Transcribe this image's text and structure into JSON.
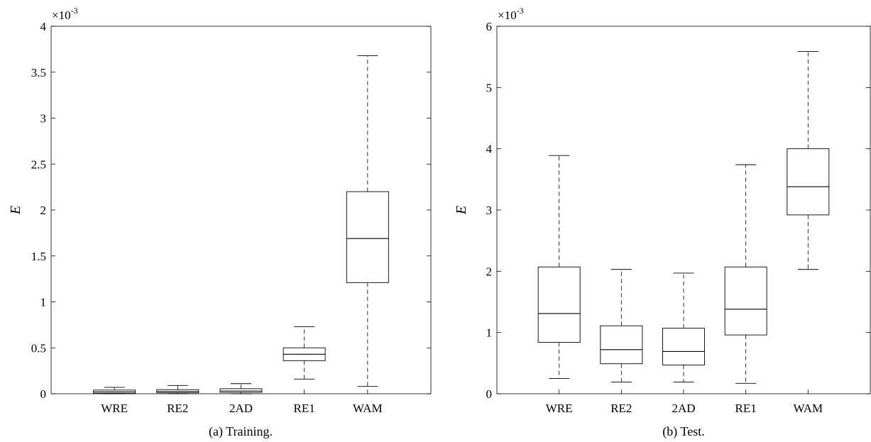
{
  "chart_data": [
    {
      "type": "box",
      "caption": "(a) Training.",
      "ylabel": "E",
      "multiplier": {
        "base": "×10",
        "exponent": "-3"
      },
      "ylim": [
        0,
        4
      ],
      "yticks": [
        0,
        0.5,
        1,
        1.5,
        2,
        2.5,
        3,
        3.5,
        4
      ],
      "ytick_labels": [
        "0",
        "0.5",
        "1",
        "1.5",
        "2",
        "2.5",
        "3",
        "3.5",
        "4"
      ],
      "categories": [
        "WRE",
        "RE2",
        "2AD",
        "RE1",
        "WAM"
      ],
      "boxes": [
        {
          "whisker_low": 0.0,
          "q1": 0.005,
          "median": 0.02,
          "q3": 0.04,
          "whisker_high": 0.07
        },
        {
          "whisker_low": 0.0,
          "q1": 0.01,
          "median": 0.025,
          "q3": 0.045,
          "whisker_high": 0.09
        },
        {
          "whisker_low": 0.0,
          "q1": 0.015,
          "median": 0.03,
          "q3": 0.055,
          "whisker_high": 0.11
        },
        {
          "whisker_low": 0.16,
          "q1": 0.36,
          "median": 0.43,
          "q3": 0.5,
          "whisker_high": 0.73
        },
        {
          "whisker_low": 0.08,
          "q1": 1.21,
          "median": 1.69,
          "q3": 2.2,
          "whisker_high": 3.68
        }
      ],
      "grid": false
    },
    {
      "type": "box",
      "caption": "(b) Test.",
      "ylabel": "E",
      "multiplier": {
        "base": "×10",
        "exponent": "-3"
      },
      "ylim": [
        0,
        6
      ],
      "yticks": [
        0,
        1,
        2,
        3,
        4,
        5,
        6
      ],
      "ytick_labels": [
        "0",
        "1",
        "2",
        "3",
        "4",
        "5",
        "6"
      ],
      "categories": [
        "WRE",
        "RE2",
        "2AD",
        "RE1",
        "WAM"
      ],
      "boxes": [
        {
          "whisker_low": 0.25,
          "q1": 0.84,
          "median": 1.31,
          "q3": 2.07,
          "whisker_high": 3.89
        },
        {
          "whisker_low": 0.19,
          "q1": 0.49,
          "median": 0.72,
          "q3": 1.11,
          "whisker_high": 2.03
        },
        {
          "whisker_low": 0.19,
          "q1": 0.47,
          "median": 0.69,
          "q3": 1.07,
          "whisker_high": 1.97
        },
        {
          "whisker_low": 0.17,
          "q1": 0.96,
          "median": 1.38,
          "q3": 2.07,
          "whisker_high": 3.74
        },
        {
          "whisker_low": 2.03,
          "q1": 2.92,
          "median": 3.38,
          "q3": 4.0,
          "whisker_high": 5.59
        }
      ],
      "grid": false
    }
  ]
}
